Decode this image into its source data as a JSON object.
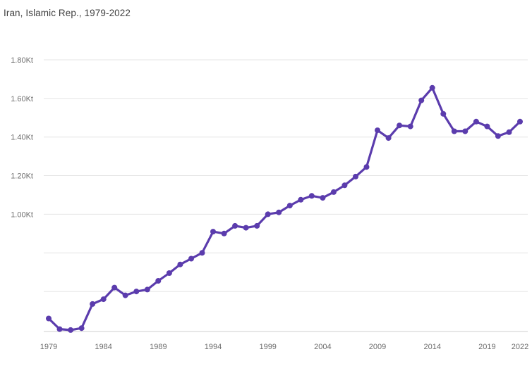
{
  "page": {
    "title": "Iran, Islamic Rep., 1979-2022"
  },
  "colors": {
    "line": "#5b3cad",
    "point": "#5b3cad",
    "grid": "#e4e4e4",
    "axis_line": "#cfcfcf",
    "tick_text": "#6e6e6e",
    "title_text": "#3f3f3f",
    "background": "#ffffff"
  },
  "chart_data": {
    "type": "line",
    "title": "Iran, Islamic Rep., 1979-2022",
    "series_name": "Iran, Islamic Rep.",
    "unit": "Kt",
    "legend": "none",
    "grid": "horizontal-only",
    "x": [
      1979,
      1980,
      1981,
      1982,
      1983,
      1984,
      1985,
      1986,
      1987,
      1988,
      1989,
      1990,
      1991,
      1992,
      1993,
      1994,
      1995,
      1996,
      1997,
      1998,
      1999,
      2000,
      2001,
      2002,
      2003,
      2004,
      2005,
      2006,
      2007,
      2008,
      2009,
      2010,
      2011,
      2012,
      2013,
      2014,
      2015,
      2016,
      2017,
      2018,
      2019,
      2020,
      2021,
      2022
    ],
    "values": [
      0.46,
      0.405,
      0.4,
      0.41,
      0.535,
      0.56,
      0.62,
      0.58,
      0.6,
      0.61,
      0.655,
      0.695,
      0.74,
      0.77,
      0.8,
      0.91,
      0.9,
      0.94,
      0.93,
      0.94,
      1.0,
      1.01,
      1.045,
      1.075,
      1.095,
      1.085,
      1.115,
      1.15,
      1.195,
      1.245,
      1.435,
      1.395,
      1.46,
      1.455,
      1.59,
      1.655,
      1.52,
      1.43,
      1.43,
      1.48,
      1.455,
      1.405,
      1.425,
      1.48
    ],
    "x_ticks": [
      1979,
      1984,
      1989,
      1994,
      1999,
      2004,
      2009,
      2014,
      2019,
      2022
    ],
    "y_ticks": [
      {
        "value": 1.8,
        "label": "1.80Kt"
      },
      {
        "value": 1.6,
        "label": "1.60Kt"
      },
      {
        "value": 1.4,
        "label": "1.40Kt"
      },
      {
        "value": 1.2,
        "label": "1.20Kt"
      },
      {
        "value": 1.0,
        "label": "1.00Kt"
      },
      {
        "value": 0.8,
        "label": ""
      },
      {
        "value": 0.6,
        "label": ""
      }
    ],
    "ylim": [
      0.393,
      1.8
    ],
    "xlabel": "",
    "ylabel": ""
  }
}
